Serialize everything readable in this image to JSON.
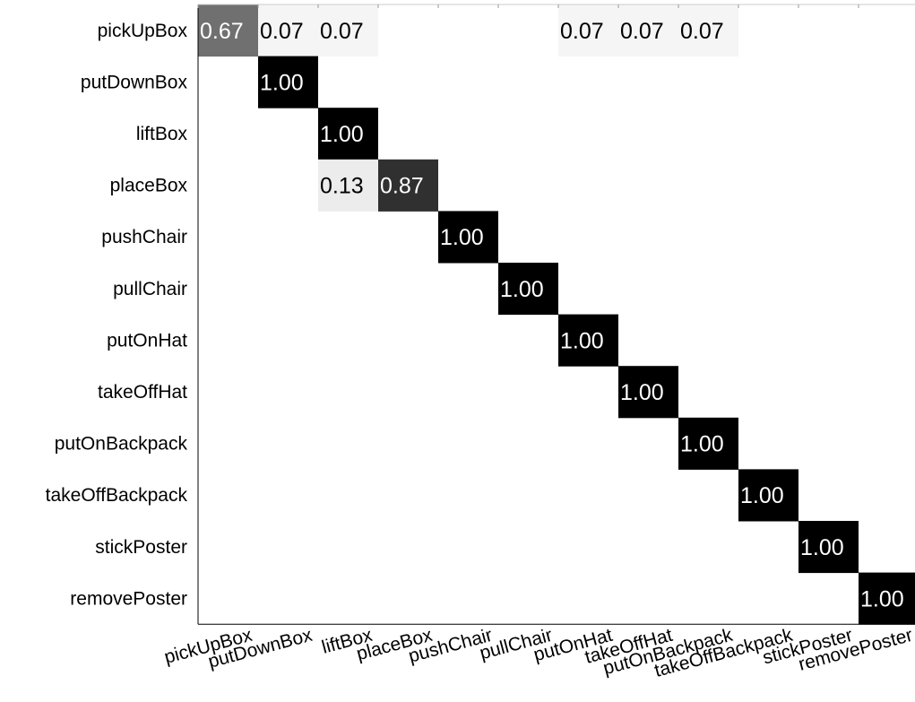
{
  "chart_data": {
    "type": "heatmap",
    "title": "",
    "xlabel": "",
    "ylabel": "",
    "rows": [
      "pickUpBox",
      "putDownBox",
      "liftBox",
      "placeBox",
      "pushChair",
      "pullChair",
      "putOnHat",
      "takeOffHat",
      "putOnBackpack",
      "takeOffBackpack",
      "stickPoster",
      "removePoster"
    ],
    "cols": [
      "pickUpBox",
      "putDownBox",
      "liftBox",
      "placeBox",
      "pushChair",
      "pullChair",
      "putOnHat",
      "takeOffHat",
      "putOnBackpack",
      "takeOffBackpack",
      "stickPoster",
      "removePoster"
    ],
    "values": [
      [
        0.67,
        0.07,
        0.07,
        0,
        0,
        0,
        0.07,
        0.07,
        0.07,
        0,
        0,
        0
      ],
      [
        0,
        1.0,
        0,
        0,
        0,
        0,
        0,
        0,
        0,
        0,
        0,
        0
      ],
      [
        0,
        0,
        1.0,
        0,
        0,
        0,
        0,
        0,
        0,
        0,
        0,
        0
      ],
      [
        0,
        0,
        0.13,
        0.87,
        0,
        0,
        0,
        0,
        0,
        0,
        0,
        0
      ],
      [
        0,
        0,
        0,
        0,
        1.0,
        0,
        0,
        0,
        0,
        0,
        0,
        0
      ],
      [
        0,
        0,
        0,
        0,
        0,
        1.0,
        0,
        0,
        0,
        0,
        0,
        0
      ],
      [
        0,
        0,
        0,
        0,
        0,
        0,
        1.0,
        0,
        0,
        0,
        0,
        0
      ],
      [
        0,
        0,
        0,
        0,
        0,
        0,
        0,
        1.0,
        0,
        0,
        0,
        0
      ],
      [
        0,
        0,
        0,
        0,
        0,
        0,
        0,
        0,
        1.0,
        0,
        0,
        0
      ],
      [
        0,
        0,
        0,
        0,
        0,
        0,
        0,
        0,
        0,
        1.0,
        0,
        0
      ],
      [
        0,
        0,
        0,
        0,
        0,
        0,
        0,
        0,
        0,
        0,
        1.0,
        0
      ],
      [
        0,
        0,
        0,
        0,
        0,
        0,
        0,
        0,
        0,
        0,
        0,
        1.0
      ]
    ],
    "value_labels": [
      [
        "0.67",
        "0.07",
        "0.07",
        "",
        "",
        "",
        "0.07",
        "0.07",
        "0.07",
        "",
        "",
        ""
      ],
      [
        "",
        "1.00",
        "",
        "",
        "",
        "",
        "",
        "",
        "",
        "",
        "",
        ""
      ],
      [
        "",
        "",
        "1.00",
        "",
        "",
        "",
        "",
        "",
        "",
        "",
        "",
        ""
      ],
      [
        "",
        "",
        "0.13",
        "0.87",
        "",
        "",
        "",
        "",
        "",
        "",
        "",
        ""
      ],
      [
        "",
        "",
        "",
        "",
        "1.00",
        "",
        "",
        "",
        "",
        "",
        "",
        ""
      ],
      [
        "",
        "",
        "",
        "",
        "",
        "1.00",
        "",
        "",
        "",
        "",
        "",
        ""
      ],
      [
        "",
        "",
        "",
        "",
        "",
        "",
        "1.00",
        "",
        "",
        "",
        "",
        ""
      ],
      [
        "",
        "",
        "",
        "",
        "",
        "",
        "",
        "1.00",
        "",
        "",
        "",
        ""
      ],
      [
        "",
        "",
        "",
        "",
        "",
        "",
        "",
        "",
        "1.00",
        "",
        "",
        ""
      ],
      [
        "",
        "",
        "",
        "",
        "",
        "",
        "",
        "",
        "",
        "1.00",
        "",
        ""
      ],
      [
        "",
        "",
        "",
        "",
        "",
        "",
        "",
        "",
        "",
        "",
        "1.00",
        ""
      ],
      [
        "",
        "",
        "",
        "",
        "",
        "",
        "",
        "",
        "",
        "",
        "",
        "1.00"
      ]
    ],
    "colorscale": "grayscale (0 = white, 1 = black)",
    "grid": false,
    "legend": "none"
  }
}
